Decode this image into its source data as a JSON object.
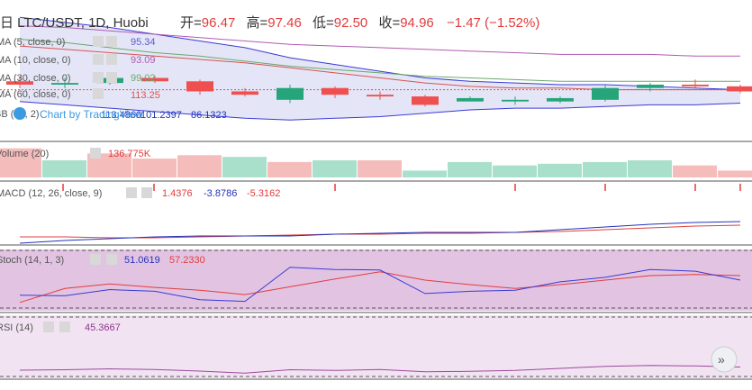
{
  "header": {
    "symbol_line": "日 LTC/USDT, 1D, Huobi",
    "open_label": "开=",
    "open": "96.47",
    "high_label": "高=",
    "high": "97.46",
    "low_label": "低=",
    "low": "92.50",
    "close_label": "收=",
    "close": "94.96",
    "change": "−1.47 (−1.52%)"
  },
  "indicators": {
    "ma5": {
      "label": "MA (5, close, 0)",
      "value": "95.34",
      "color": "#5b5bcf"
    },
    "ma10": {
      "label": "MA (10, close, 0)",
      "value": "93.09",
      "color": "#b05bb0"
    },
    "ma30": {
      "label": "MA (30, close, 0)",
      "value": "99.02",
      "color": "#6aa86a"
    },
    "ma60": {
      "label": "MA (60, close, 0)",
      "value": "113.25",
      "color": "#d9534f"
    },
    "bb": {
      "label": "BB (20, 2)",
      "value_upper": "113.4860",
      "value_mid": "101.2397",
      "value_lower": "86.1323"
    },
    "watermark": "Chart by TradingView"
  },
  "volume": {
    "label": "Volume (20)",
    "value": "136.775K"
  },
  "macd": {
    "label": "MACD (12, 26, close, 9)",
    "v1": "1.4376",
    "v2": "-3.8786",
    "v3": "-5.3162",
    "colors": [
      "#e23c3c",
      "#2233bb",
      "#e23c3c"
    ]
  },
  "stoch": {
    "label": "Stoch (14, 1, 3)",
    "k": "51.0619",
    "d": "57.2330"
  },
  "rsi": {
    "label": "RSI (14)",
    "value": "45.3667"
  },
  "colors": {
    "up": "#26a57a",
    "down": "#ef4f4f",
    "up_vol": "#a8e0cc",
    "down_vol": "#f5bcbc",
    "bb_fill": "#dde0f5",
    "stoch_bg": "#e2c4e2",
    "rsi_bg": "#f2e3f2"
  },
  "chart_data": {
    "type": "candlestick",
    "candles": [
      {
        "o": 112,
        "h": 115,
        "l": 108,
        "c": 110
      },
      {
        "o": 110,
        "h": 114,
        "l": 108,
        "c": 111
      },
      {
        "o": 111,
        "h": 116,
        "l": 110,
        "c": 114
      },
      {
        "o": 114,
        "h": 115,
        "l": 111,
        "c": 112
      },
      {
        "o": 112,
        "h": 113,
        "l": 104,
        "c": 106
      },
      {
        "o": 106,
        "h": 108,
        "l": 103,
        "c": 104
      },
      {
        "o": 101,
        "h": 110,
        "l": 99,
        "c": 108
      },
      {
        "o": 108,
        "h": 109,
        "l": 102,
        "c": 104
      },
      {
        "o": 104,
        "h": 106,
        "l": 101,
        "c": 103
      },
      {
        "o": 103,
        "h": 104,
        "l": 97,
        "c": 98
      },
      {
        "o": 100,
        "h": 103,
        "l": 100,
        "c": 102
      },
      {
        "o": 100,
        "h": 103,
        "l": 98,
        "c": 101
      },
      {
        "o": 100,
        "h": 103,
        "l": 99,
        "c": 102
      },
      {
        "o": 101,
        "h": 110,
        "l": 100,
        "c": 108
      },
      {
        "o": 108,
        "h": 111,
        "l": 106,
        "c": 110
      },
      {
        "o": 110,
        "h": 113,
        "l": 108,
        "c": 109
      },
      {
        "o": 109,
        "h": 110,
        "l": 105,
        "c": 106
      }
    ],
    "bb_upper": [
      150,
      147,
      144,
      140,
      136,
      132,
      126,
      122,
      118,
      114,
      112,
      111,
      110,
      110,
      109,
      108,
      107
    ],
    "bb_lower": [
      100,
      98,
      96,
      94,
      92,
      90,
      89,
      90,
      91,
      93,
      95,
      96,
      96,
      97,
      98,
      98,
      99
    ],
    "ma60": [
      133,
      131,
      129,
      127,
      125,
      123,
      120,
      117,
      114,
      111,
      109,
      108,
      108,
      107,
      107,
      107,
      107
    ],
    "ma30": [
      137,
      135,
      132,
      129,
      127,
      124,
      121,
      119,
      117,
      115,
      114,
      113,
      112,
      112,
      112,
      112,
      112
    ],
    "ma10": [
      145,
      144,
      142,
      140,
      138,
      136,
      134,
      133,
      132,
      131,
      130,
      129,
      128,
      128,
      128,
      127,
      127
    ],
    "volume": [
      {
        "v": 34,
        "up": false
      },
      {
        "v": 20,
        "up": true
      },
      {
        "v": 28,
        "up": false
      },
      {
        "v": 22,
        "up": false
      },
      {
        "v": 26,
        "up": false
      },
      {
        "v": 24,
        "up": true
      },
      {
        "v": 18,
        "up": false
      },
      {
        "v": 20,
        "up": true
      },
      {
        "v": 20,
        "up": false
      },
      {
        "v": 8,
        "up": true
      },
      {
        "v": 18,
        "up": true
      },
      {
        "v": 14,
        "up": true
      },
      {
        "v": 16,
        "up": true
      },
      {
        "v": 18,
        "up": true
      },
      {
        "v": 20,
        "up": true
      },
      {
        "v": 14,
        "up": false
      },
      {
        "v": 8,
        "up": false
      }
    ],
    "macd_line": [
      -20,
      -17,
      -15,
      -13,
      -12,
      -12,
      -12,
      -10,
      -9,
      -8,
      -8,
      -8,
      -5,
      -2,
      1,
      3,
      4
    ],
    "macd_signal": [
      -13,
      -13,
      -14,
      -14,
      -13,
      -12,
      -11,
      -10,
      -10,
      -9,
      -9,
      -8,
      -7,
      -5,
      -3,
      -1,
      0
    ],
    "stoch_k": [
      23,
      22,
      33,
      30,
      15,
      12,
      73,
      69,
      68,
      26,
      30,
      32,
      47,
      55,
      69,
      66,
      50
    ],
    "stoch_d": [
      10,
      35,
      43,
      37,
      32,
      24,
      38,
      52,
      65,
      50,
      42,
      35,
      42,
      50,
      58,
      60,
      58
    ],
    "rsi": [
      36,
      38,
      42,
      39,
      32,
      23,
      38,
      35,
      39,
      29,
      31,
      35,
      44,
      53,
      57,
      55,
      50
    ]
  }
}
